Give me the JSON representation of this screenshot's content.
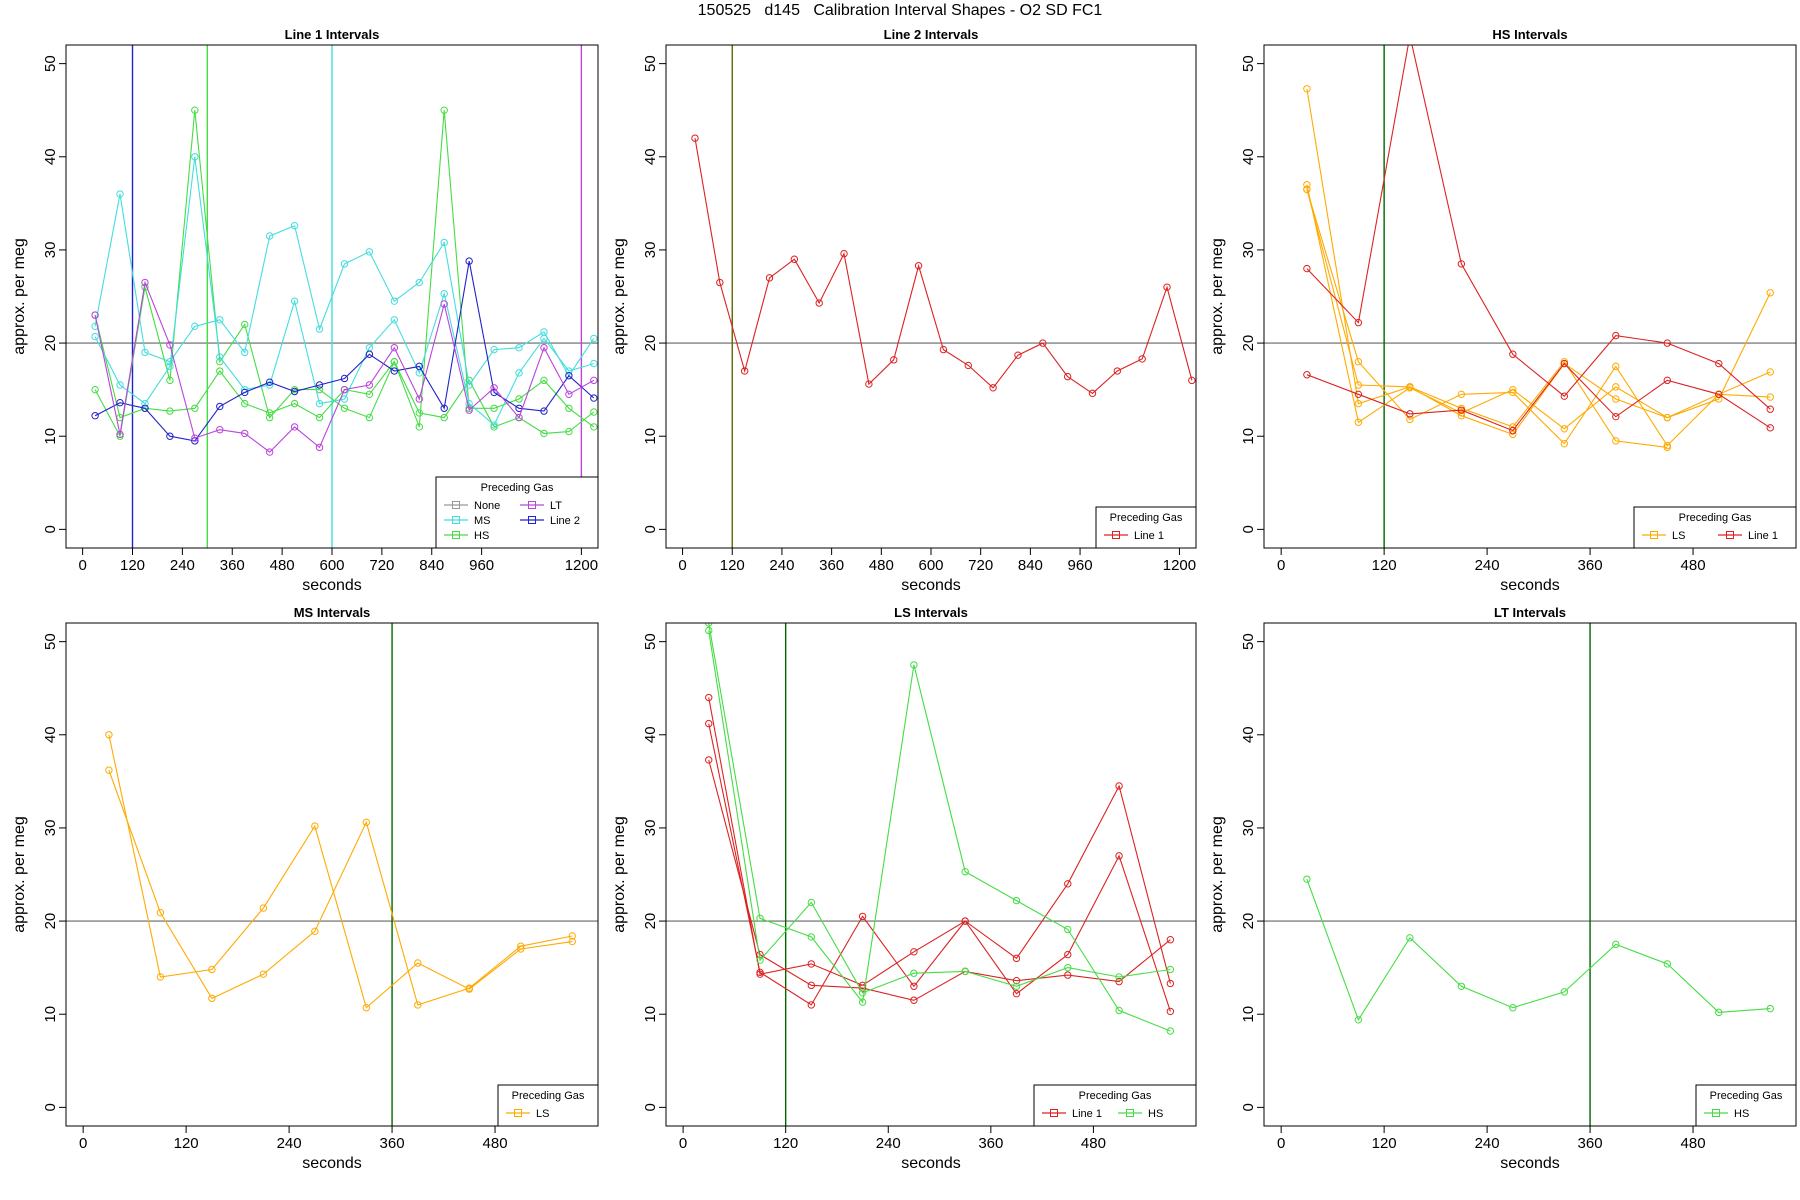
{
  "suptitle": "150525   d145   Calibration Interval Shapes - O2 SD FC1",
  "colors": {
    "None": "#999999",
    "HS": "#44dd44",
    "Line 2": "#2222cc",
    "MS": "#44dddd",
    "LT": "#bb44dd",
    "Line 1": "#dd2222",
    "LS": "#ffaa00",
    "axis": "#000000",
    "refline": "#666666",
    "vline": "#006600"
  },
  "chart_data": [
    {
      "type": "line",
      "title": "Line 1 Intervals",
      "xlabel": "seconds",
      "ylabel": "approx. per meg",
      "xlim": [
        -40,
        1240
      ],
      "ylim": [
        -2,
        52
      ],
      "xticks": [
        0,
        120,
        240,
        360,
        480,
        600,
        720,
        840,
        960,
        1200
      ],
      "yticks": [
        0,
        10,
        20,
        30,
        40,
        50
      ],
      "hline": 20,
      "vlines": [
        {
          "x": 120,
          "color": "#2222cc"
        },
        {
          "x": 300,
          "color": "#44dd44"
        },
        {
          "x": 600,
          "color": "#44dddd"
        },
        {
          "x": 1200,
          "color": "#bb44dd"
        }
      ],
      "legend": {
        "title": "Preceding Gas",
        "columns": 2,
        "entries": [
          "None",
          "MS",
          "HS",
          "LT",
          "Line 2"
        ]
      },
      "series": [
        {
          "name": "HS",
          "x": [
            30,
            90,
            150,
            210,
            270,
            330,
            390,
            450,
            510,
            570,
            630,
            690,
            750,
            810,
            870,
            930,
            990,
            1050,
            1110,
            1170,
            1230
          ],
          "y": [
            15,
            10,
            26,
            16,
            45,
            18,
            22,
            12,
            15,
            15,
            13,
            12,
            18,
            11,
            45,
            13,
            13,
            14,
            16,
            13,
            11
          ]
        },
        {
          "name": "HS",
          "x": [
            30,
            90,
            150,
            210,
            270,
            330,
            390,
            450,
            510,
            570,
            630,
            690,
            750,
            810,
            870,
            930,
            990,
            1050,
            1110,
            1170,
            1230
          ],
          "y": [
            23,
            12,
            13,
            12.7,
            13,
            17,
            13.5,
            12.5,
            13.5,
            12,
            15,
            14.5,
            18,
            12.5,
            12,
            16,
            11,
            12,
            10.3,
            10.5,
            12.6
          ]
        },
        {
          "name": "MS",
          "x": [
            30,
            90,
            150,
            210,
            270,
            330,
            390,
            450,
            510,
            570,
            630,
            690,
            750,
            810,
            870,
            930,
            990,
            1050,
            1110,
            1170,
            1230
          ],
          "y": [
            21.8,
            36,
            19,
            18,
            21.8,
            22.5,
            19,
            31.5,
            32.6,
            21.5,
            28.5,
            29.8,
            24.5,
            26.5,
            30.8,
            15.5,
            19.3,
            19.5,
            21.2,
            16.5,
            20.5
          ]
        },
        {
          "name": "MS",
          "x": [
            30,
            90,
            150,
            210,
            270,
            330,
            390,
            450,
            510,
            570,
            630,
            690,
            750,
            810,
            870,
            930,
            990,
            1050,
            1110,
            1170,
            1230
          ],
          "y": [
            20.7,
            15.5,
            13.5,
            17.5,
            40,
            18.5,
            15,
            15.5,
            24.5,
            13.5,
            14,
            19.5,
            22.5,
            16.8,
            25.3,
            13.5,
            11.2,
            16.8,
            20.5,
            17,
            17.8
          ]
        },
        {
          "name": "Line 2",
          "x": [
            30,
            90,
            150,
            210,
            270,
            330,
            390,
            450,
            510,
            570,
            630,
            690,
            750,
            810,
            870,
            930,
            990,
            1050,
            1110,
            1170,
            1230
          ],
          "y": [
            12.2,
            13.6,
            13,
            10,
            9.5,
            13.2,
            14.7,
            15.8,
            14.8,
            15.5,
            16.2,
            18.8,
            17,
            17.5,
            13,
            28.8,
            14.7,
            13,
            12.7,
            16.5,
            14.1
          ]
        },
        {
          "name": "LT",
          "x": [
            30,
            90,
            150,
            210,
            270,
            330,
            390,
            450,
            510,
            570,
            630,
            690,
            750,
            810,
            870,
            930,
            990,
            1050,
            1110,
            1170,
            1230
          ],
          "y": [
            23,
            10.2,
            26.5,
            19.8,
            9.8,
            10.7,
            10.3,
            8.3,
            11,
            8.8,
            15,
            15.5,
            19.5,
            14,
            24.2,
            12.8,
            15.2,
            12,
            19.5,
            14.5,
            16
          ]
        }
      ]
    },
    {
      "type": "line",
      "title": "Line 2 Intervals",
      "xlabel": "seconds",
      "ylabel": "approx. per meg",
      "xlim": [
        -40,
        1240
      ],
      "ylim": [
        -2,
        52
      ],
      "xticks": [
        0,
        120,
        240,
        360,
        480,
        600,
        720,
        840,
        960,
        1200
      ],
      "yticks": [
        0,
        10,
        20,
        30,
        40,
        50
      ],
      "hline": 20,
      "vlines": [
        {
          "x": 120,
          "color": "#556b00"
        }
      ],
      "legend": {
        "title": "Preceding Gas",
        "columns": 1,
        "entries": [
          "Line 1"
        ]
      },
      "series": [
        {
          "name": "Line 1",
          "x": [
            30,
            90,
            150,
            210,
            270,
            330,
            390,
            450,
            510,
            570,
            630,
            690,
            750,
            810,
            870,
            930,
            990,
            1050,
            1110,
            1170,
            1230
          ],
          "y": [
            42,
            26.5,
            17,
            27,
            29,
            24.3,
            29.6,
            15.6,
            18.2,
            28.3,
            19.3,
            17.6,
            15.2,
            18.7,
            20,
            16.4,
            14.6,
            17,
            18.3,
            26,
            16
          ]
        }
      ]
    },
    {
      "type": "line",
      "title": "HS Intervals",
      "xlabel": "seconds",
      "ylabel": "approx. per meg",
      "xlim": [
        -20,
        600
      ],
      "ylim": [
        -2,
        52
      ],
      "xticks": [
        0,
        120,
        240,
        360,
        480
      ],
      "yticks": [
        0,
        10,
        20,
        30,
        40,
        50
      ],
      "hline": 20,
      "vlines": [
        {
          "x": 120,
          "color": "#006600"
        }
      ],
      "legend": {
        "title": "Preceding Gas",
        "columns": 2,
        "entries": [
          "LS",
          "Line 1"
        ]
      },
      "series": [
        {
          "name": "LS",
          "x": [
            30,
            90,
            150,
            210,
            270,
            330,
            390,
            450,
            510,
            570
          ],
          "y": [
            47.3,
            13.5,
            15.3,
            12.2,
            10.2,
            17.8,
            14,
            12,
            14.5,
            14.2
          ]
        },
        {
          "name": "LS",
          "x": [
            30,
            90,
            150,
            210,
            270,
            330,
            390,
            450,
            510,
            570
          ],
          "y": [
            37,
            11.5,
            15.2,
            12.5,
            15,
            10.8,
            15.3,
            12,
            14,
            25.4
          ]
        },
        {
          "name": "LS",
          "x": [
            30,
            90,
            150,
            210,
            270,
            330,
            390,
            450,
            510,
            570
          ],
          "y": [
            36.5,
            18,
            11.8,
            14.5,
            14.7,
            9.2,
            17.5,
            9,
            14.5,
            16.9
          ]
        },
        {
          "name": "LS",
          "x": [
            30,
            90,
            150,
            210,
            270,
            330,
            390,
            450
          ],
          "y": [
            36.5,
            15.5,
            15.3,
            13,
            11,
            18,
            9.5,
            8.8
          ]
        },
        {
          "name": "Line 1",
          "x": [
            30,
            90,
            150,
            210,
            270,
            330,
            390,
            450,
            510,
            570
          ],
          "y": [
            28,
            22.2,
            53,
            28.5,
            18.8,
            14.3,
            20.8,
            20,
            17.8,
            12.9
          ]
        },
        {
          "name": "Line 1",
          "x": [
            30,
            90,
            150,
            210,
            270,
            330,
            390,
            450,
            510,
            570
          ],
          "y": [
            16.6,
            14.5,
            12.4,
            12.8,
            10.6,
            17.8,
            12.1,
            16,
            14.5,
            10.9
          ]
        }
      ]
    },
    {
      "type": "line",
      "title": "MS Intervals",
      "xlabel": "seconds",
      "ylabel": "approx. per meg",
      "xlim": [
        -20,
        600
      ],
      "ylim": [
        -2,
        52
      ],
      "xticks": [
        0,
        120,
        240,
        360,
        480
      ],
      "yticks": [
        0,
        10,
        20,
        30,
        40,
        50
      ],
      "hline": 20,
      "vlines": [
        {
          "x": 360,
          "color": "#006600"
        }
      ],
      "legend": {
        "title": "Preceding Gas",
        "columns": 1,
        "entries": [
          "LS"
        ]
      },
      "series": [
        {
          "name": "LS",
          "x": [
            30,
            90,
            150,
            210,
            270,
            330,
            390,
            450,
            510,
            570
          ],
          "y": [
            40,
            14,
            14.8,
            21.4,
            30.2,
            10.7,
            15.5,
            12.7,
            17,
            17.8
          ]
        },
        {
          "name": "LS",
          "x": [
            30,
            90,
            150,
            210,
            270,
            330,
            390,
            450,
            510,
            570
          ],
          "y": [
            36.2,
            20.9,
            11.7,
            14.3,
            18.9,
            30.6,
            11,
            12.8,
            17.3,
            18.4
          ]
        }
      ]
    },
    {
      "type": "line",
      "title": "LS Intervals",
      "xlabel": "seconds",
      "ylabel": "approx. per meg",
      "xlim": [
        -20,
        600
      ],
      "ylim": [
        -2,
        52
      ],
      "xticks": [
        0,
        120,
        240,
        360,
        480
      ],
      "yticks": [
        0,
        10,
        20,
        30,
        40,
        50
      ],
      "hline": 20,
      "vlines": [
        {
          "x": 120,
          "color": "#006600"
        }
      ],
      "legend": {
        "title": "Preceding Gas",
        "columns": 2,
        "entries": [
          "Line 1",
          "HS"
        ]
      },
      "series": [
        {
          "name": "Line 1",
          "x": [
            30,
            90,
            150,
            210,
            270,
            330,
            390,
            450,
            510,
            570
          ],
          "y": [
            44,
            14.3,
            15.4,
            13.1,
            16.7,
            20,
            16,
            24,
            34.5,
            13.3
          ]
        },
        {
          "name": "Line 1",
          "x": [
            30,
            90,
            150,
            210,
            270,
            330,
            390,
            450,
            510,
            570
          ],
          "y": [
            41.2,
            14.5,
            11,
            20.5,
            13,
            20,
            12.2,
            16.4,
            27,
            10.3
          ]
        },
        {
          "name": "Line 1",
          "x": [
            30,
            90,
            150,
            210,
            270,
            330,
            390,
            450,
            510,
            570
          ],
          "y": [
            37.3,
            16.4,
            13.1,
            12.8,
            11.5,
            14.6,
            13.6,
            14.2,
            13.5,
            18
          ]
        },
        {
          "name": "HS",
          "x": [
            30,
            90,
            150,
            210,
            270,
            330,
            390,
            450,
            510,
            570
          ],
          "y": [
            52,
            20.3,
            18.3,
            11.3,
            47.5,
            25.3,
            22.2,
            19.1,
            10.4,
            8.2
          ]
        },
        {
          "name": "HS",
          "x": [
            30,
            90,
            150,
            210,
            270,
            330,
            390,
            450,
            510,
            570
          ],
          "y": [
            51.2,
            15.8,
            22,
            12.3,
            14.4,
            14.6,
            13,
            15,
            14,
            14.8
          ]
        }
      ]
    },
    {
      "type": "line",
      "title": "LT Intervals",
      "xlabel": "seconds",
      "ylabel": "approx. per meg",
      "xlim": [
        -20,
        600
      ],
      "ylim": [
        -2,
        52
      ],
      "xticks": [
        0,
        120,
        240,
        360,
        480
      ],
      "yticks": [
        0,
        10,
        20,
        30,
        40,
        50
      ],
      "hline": 20,
      "vlines": [
        {
          "x": 360,
          "color": "#006600"
        }
      ],
      "legend": {
        "title": "Preceding Gas",
        "columns": 1,
        "entries": [
          "HS"
        ]
      },
      "series": [
        {
          "name": "HS",
          "x": [
            30,
            90,
            150,
            210,
            270,
            330,
            390,
            450,
            510,
            570
          ],
          "y": [
            24.5,
            9.4,
            18.2,
            13,
            10.7,
            12.4,
            17.5,
            15.4,
            10.2,
            10.6
          ]
        }
      ]
    }
  ]
}
